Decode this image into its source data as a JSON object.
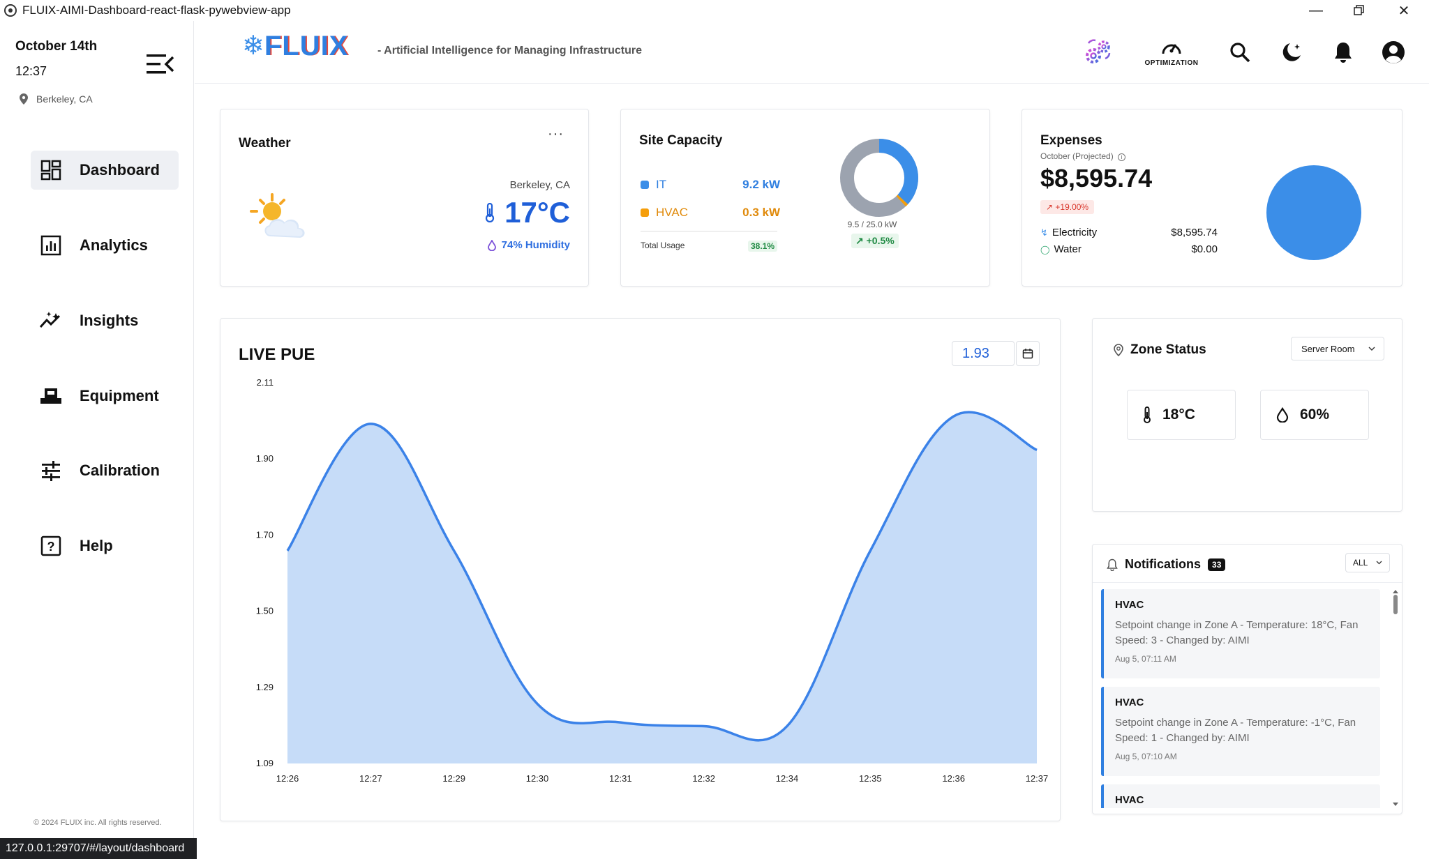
{
  "window": {
    "title": "FLUIX-AIMI-Dashboard-react-flask-pywebview-app"
  },
  "sidebar": {
    "date": "October 14th",
    "time": "12:37",
    "location": "Berkeley, CA",
    "items": [
      {
        "label": "Dashboard",
        "icon": "dashboard-icon",
        "active": true
      },
      {
        "label": "Analytics",
        "icon": "analytics-icon"
      },
      {
        "label": "Insights",
        "icon": "insights-icon"
      },
      {
        "label": "Equipment",
        "icon": "equipment-icon"
      },
      {
        "label": "Calibration",
        "icon": "calibration-icon"
      },
      {
        "label": "Help",
        "icon": "help-icon"
      }
    ],
    "copyright": "© 2024 FLUIX inc. All rights reserved."
  },
  "header": {
    "logo_text": "FLUIX",
    "tagline": "- Artificial Intelligence for Managing Infrastructure",
    "optimization_label": "OPTIMIZATION"
  },
  "weather": {
    "title": "Weather",
    "more": "···",
    "city": "Berkeley, CA",
    "temperature": "17°C",
    "humidity": "74% Humidity"
  },
  "capacity": {
    "title": "Site Capacity",
    "it_label": "IT",
    "it_value": "9.2 kW",
    "hvac_label": "HVAC",
    "hvac_value": "0.3 kW",
    "total_label": "Total Usage",
    "total_pct": "38.1%",
    "usage_text": "9.5 / 25.0 kW",
    "delta": "↗ +0.5%",
    "used_kw": 9.5,
    "max_kw": 25.0,
    "colors": {
      "it": "#3b8ee8",
      "hvac": "#f59e0b",
      "rest": "#9ca3af"
    }
  },
  "expenses": {
    "title": "Expenses",
    "subtitle": "October (Projected)",
    "amount": "$8,595.74",
    "change": "↗ +19.00%",
    "electricity_label": "Electricity",
    "electricity_value": "$8,595.74",
    "water_label": "Water",
    "water_value": "$0.00"
  },
  "pue": {
    "title": "LIVE PUE",
    "current": "1.93"
  },
  "chart_data": {
    "type": "area",
    "title": "LIVE PUE",
    "x": [
      "12:26",
      "12:27",
      "12:29",
      "12:30",
      "12:31",
      "12:32",
      "12:34",
      "12:35",
      "12:36",
      "12:37"
    ],
    "series": [
      {
        "values": [
          1.66,
          2.0,
          1.66,
          1.25,
          1.2,
          1.19,
          1.19,
          1.66,
          2.02,
          1.93
        ]
      }
    ],
    "y_ticks": [
      "2.11",
      "1.90",
      "1.70",
      "1.50",
      "1.29",
      "1.09"
    ],
    "ylim": [
      1.09,
      2.11
    ],
    "colors": {
      "line": "#3b82e8",
      "fill": "#c6dcf8"
    }
  },
  "zone": {
    "title": "Zone Status",
    "selected": "Server Room",
    "temperature": "18°C",
    "humidity": "60%"
  },
  "notifications": {
    "title": "Notifications",
    "count": "33",
    "filter": "ALL",
    "items": [
      {
        "title": "HVAC",
        "body": "Setpoint change in Zone A - Temperature: 18°C, Fan Speed: 3 - Changed by: AIMI",
        "time": "Aug 5, 07:11 AM"
      },
      {
        "title": "HVAC",
        "body": "Setpoint change in Zone A - Temperature: -1°C, Fan Speed: 1 - Changed by: AIMI",
        "time": "Aug 5, 07:10 AM"
      },
      {
        "title": "HVAC",
        "body": "",
        "time": ""
      }
    ]
  },
  "statusbar": {
    "url": "127.0.0.1:29707/#/layout/dashboard"
  }
}
